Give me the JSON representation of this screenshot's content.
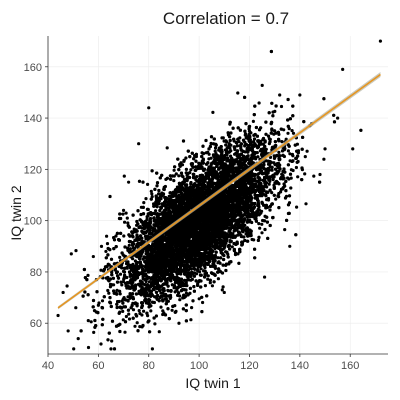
{
  "chart_data": {
    "type": "scatter",
    "title": "Correlation = 0.7",
    "xlabel": "IQ twin 1",
    "ylabel": "IQ twin 2",
    "xlim": [
      40,
      175
    ],
    "ylim": [
      48,
      172
    ],
    "x_ticks": [
      40,
      60,
      80,
      100,
      120,
      140,
      160
    ],
    "y_ticks": [
      60,
      80,
      100,
      120,
      140,
      160
    ],
    "grid": true,
    "series": [
      {
        "kind": "points",
        "n_points": 10000,
        "x_mean": 100,
        "y_mean": 100,
        "sd": 15,
        "correlation": 0.7,
        "color": "#000000",
        "outliers": [
          {
            "x": 44,
            "y": 63
          },
          {
            "x": 46,
            "y": 72
          },
          {
            "x": 48,
            "y": 57
          },
          {
            "x": 52,
            "y": 54
          },
          {
            "x": 56,
            "y": 61
          },
          {
            "x": 60,
            "y": 67
          },
          {
            "x": 65,
            "y": 50
          },
          {
            "x": 63,
            "y": 88
          },
          {
            "x": 67,
            "y": 94
          },
          {
            "x": 58,
            "y": 86
          },
          {
            "x": 70,
            "y": 104
          },
          {
            "x": 150,
            "y": 128
          },
          {
            "x": 144,
            "y": 137
          },
          {
            "x": 140,
            "y": 149
          },
          {
            "x": 132,
            "y": 149
          },
          {
            "x": 172,
            "y": 170
          },
          {
            "x": 157,
            "y": 159
          },
          {
            "x": 161,
            "y": 128
          },
          {
            "x": 155,
            "y": 140
          },
          {
            "x": 148,
            "y": 118
          },
          {
            "x": 136,
            "y": 90
          },
          {
            "x": 126,
            "y": 78
          },
          {
            "x": 80,
            "y": 144
          },
          {
            "x": 76,
            "y": 130
          },
          {
            "x": 72,
            "y": 115
          },
          {
            "x": 86,
            "y": 64
          },
          {
            "x": 92,
            "y": 60
          },
          {
            "x": 110,
            "y": 72
          }
        ]
      },
      {
        "kind": "fit-line",
        "x": [
          44,
          172
        ],
        "y": [
          66,
          157
        ],
        "band_color": "#b3b3a3",
        "line_color": "#e69520"
      }
    ]
  }
}
